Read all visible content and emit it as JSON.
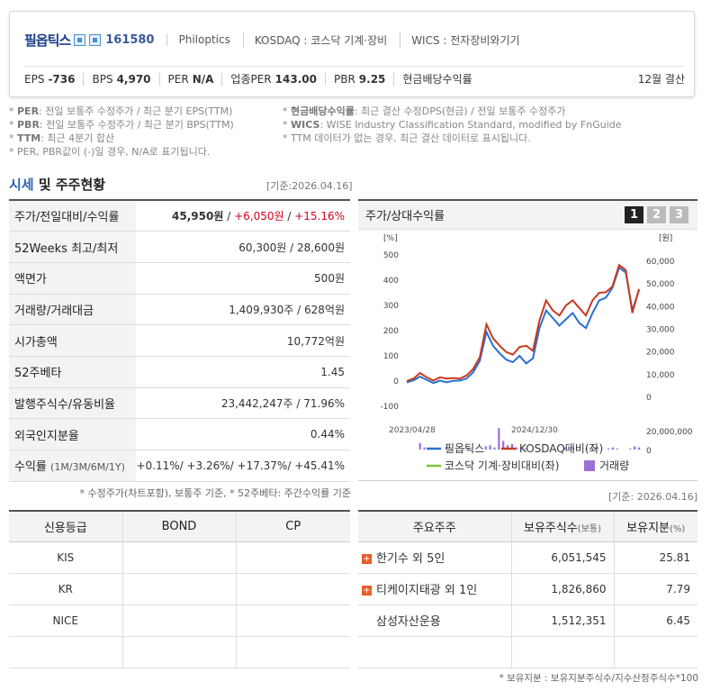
{
  "header": {
    "company_name": "필옵틱스",
    "code": "161580",
    "english_name": "Philoptics",
    "market": "KOSDAQ : 코스닥 기계·장비",
    "wics": "WICS : 전자장비와기기",
    "metrics": [
      {
        "label": "EPS",
        "value": "-736"
      },
      {
        "label": "BPS",
        "value": "4,970"
      },
      {
        "label": "PER",
        "value": "N/A"
      },
      {
        "label": "업종PER",
        "value": "143.00"
      },
      {
        "label": "PBR",
        "value": "9.25"
      },
      {
        "label": "현금배당수익률",
        "value": ""
      }
    ],
    "settlement": "12월 결산"
  },
  "notes": {
    "left": [
      {
        "key": "PER",
        "text": ": 전일 보통주 수정주가 / 최근 분기 EPS(TTM)"
      },
      {
        "key": "PBR",
        "text": ": 전일 보통주 수정주가 / 최근 분기 BPS(TTM)"
      },
      {
        "key": "TTM",
        "text": ": 최근 4분기 합산"
      },
      {
        "key": "",
        "text": "PER, PBR값이 (-)일 경우, N/A로 표기됩니다."
      }
    ],
    "right": [
      {
        "key": "현금배당수익률",
        "text": ": 최근 결산 수정DPS(현금) / 전일 보통주 수정주가"
      },
      {
        "key": "WICS",
        "text": ": WISE Industry Classification Standard, modified by FnGuide"
      },
      {
        "key": "",
        "text": "TTM 데이터가 없는 경우, 최근 결산 데이터로 표시됩니다."
      }
    ]
  },
  "section": {
    "title_hl": "시세",
    "title_rest": "및 주주현황",
    "base_date": "[기준:2026.04.16]"
  },
  "price_table": [
    {
      "label": "주가/전일대비/수익률",
      "v1": "45,950원",
      "v2": "+6,050원",
      "v3": "+15.16%"
    },
    {
      "label": "52Weeks 최고/최저",
      "value": "60,300원 / 28,600원"
    },
    {
      "label": "액면가",
      "value": "500원"
    },
    {
      "label": "거래량/거래대금",
      "value": "1,409,930주 / 628억원"
    },
    {
      "label": "시가총액",
      "value": "10,772억원"
    },
    {
      "label": "52주베타",
      "value": "1.45"
    },
    {
      "label": "발행주식수/유동비율",
      "value": "23,442,247주 / 71.96%"
    },
    {
      "label": "외국인지분율",
      "value": "0.44%"
    },
    {
      "label": "수익률",
      "sub": "(1M/3M/6M/1Y)",
      "value": "+0.11%/ +3.26%/ +17.37%/ +45.41%"
    }
  ],
  "price_footnote": "* 수정주가(차트포함), 보통주 기준, * 52주베타: 주간수익률 기준",
  "chart_header": {
    "title": "주가/상대수익률",
    "pages": [
      "1",
      "2",
      "3"
    ]
  },
  "chart_data": {
    "type": "line",
    "left_unit": "[%]",
    "right_unit": "[원]",
    "left_ticks": [
      "500",
      "400",
      "300",
      "200",
      "100",
      "0",
      "-100"
    ],
    "right_ticks": [
      "60,000",
      "50,000",
      "40,000",
      "30,000",
      "20,000",
      "10,000",
      "0"
    ],
    "volume_ticks": [
      "20,000,000",
      "0"
    ],
    "x_labels": [
      "2023/04/28",
      "2024/12/30"
    ],
    "left_range": [
      -100,
      500
    ],
    "series": [
      {
        "name": "필옵틱스",
        "color": "#2a6fd0",
        "values": [
          -5,
          3,
          18,
          5,
          -8,
          2,
          -5,
          1,
          2,
          10,
          35,
          80,
          195,
          140,
          110,
          85,
          75,
          100,
          70,
          90,
          210,
          280,
          250,
          220,
          245,
          270,
          230,
          210,
          270,
          320,
          330,
          370,
          450,
          430,
          280,
          360
        ]
      },
      {
        "name": "KOSDAQ대비(좌)",
        "color": "#c83a1e",
        "values": [
          0,
          10,
          32,
          15,
          2,
          15,
          10,
          12,
          10,
          22,
          48,
          95,
          225,
          170,
          140,
          115,
          105,
          135,
          140,
          120,
          240,
          320,
          280,
          260,
          300,
          320,
          290,
          260,
          320,
          350,
          352,
          375,
          460,
          440,
          270,
          365
        ]
      },
      {
        "name": "코스닥 기계·장비대비(좌)",
        "color": "#7dc23a",
        "values": []
      }
    ],
    "volume": {
      "name": "거래량",
      "color": "#9a6fd6",
      "values": [
        0,
        0,
        0,
        0.3,
        0.1,
        0.05,
        0,
        0,
        0,
        0.1,
        0.05,
        0,
        0,
        0.05,
        0.05,
        0,
        0,
        0,
        0.15,
        0.2,
        0.1,
        1.0,
        0.4,
        0.2,
        0.25,
        0.1,
        0.05,
        0.05,
        0,
        0,
        0,
        0,
        0,
        0,
        0,
        0,
        0.1,
        0.15,
        0.05,
        0,
        0,
        0.05,
        0.05,
        0.1,
        0,
        0,
        0.05,
        0.1,
        0.05,
        0,
        0,
        0.05,
        0.15,
        0.1
      ]
    }
  },
  "credit_table": {
    "headers": [
      "신용등급",
      "BOND",
      "CP"
    ],
    "rows": [
      [
        "KIS",
        "",
        ""
      ],
      [
        "KR",
        "",
        ""
      ],
      [
        "NICE",
        "",
        ""
      ],
      [
        "",
        "",
        ""
      ]
    ]
  },
  "holders_base": "[기준: 2026.04.16]",
  "holders_table": {
    "headers": [
      "주요주주",
      "보유주식수",
      "(보통)",
      "보유지분",
      "(%)"
    ],
    "rows": [
      {
        "name": "한기수 외 5인",
        "shares": "6,051,545",
        "pct": "25.81",
        "expand": true
      },
      {
        "name": "티케이지태광 외 1인",
        "shares": "1,826,860",
        "pct": "7.79",
        "expand": true
      },
      {
        "name": "삼성자산운용",
        "shares": "1,512,351",
        "pct": "6.45",
        "expand": false
      },
      {
        "name": "",
        "shares": "",
        "pct": "",
        "expand": false
      }
    ]
  },
  "holders_footnote": "* 보유지분 : 보유지분주식수/지수산정주식수*100"
}
